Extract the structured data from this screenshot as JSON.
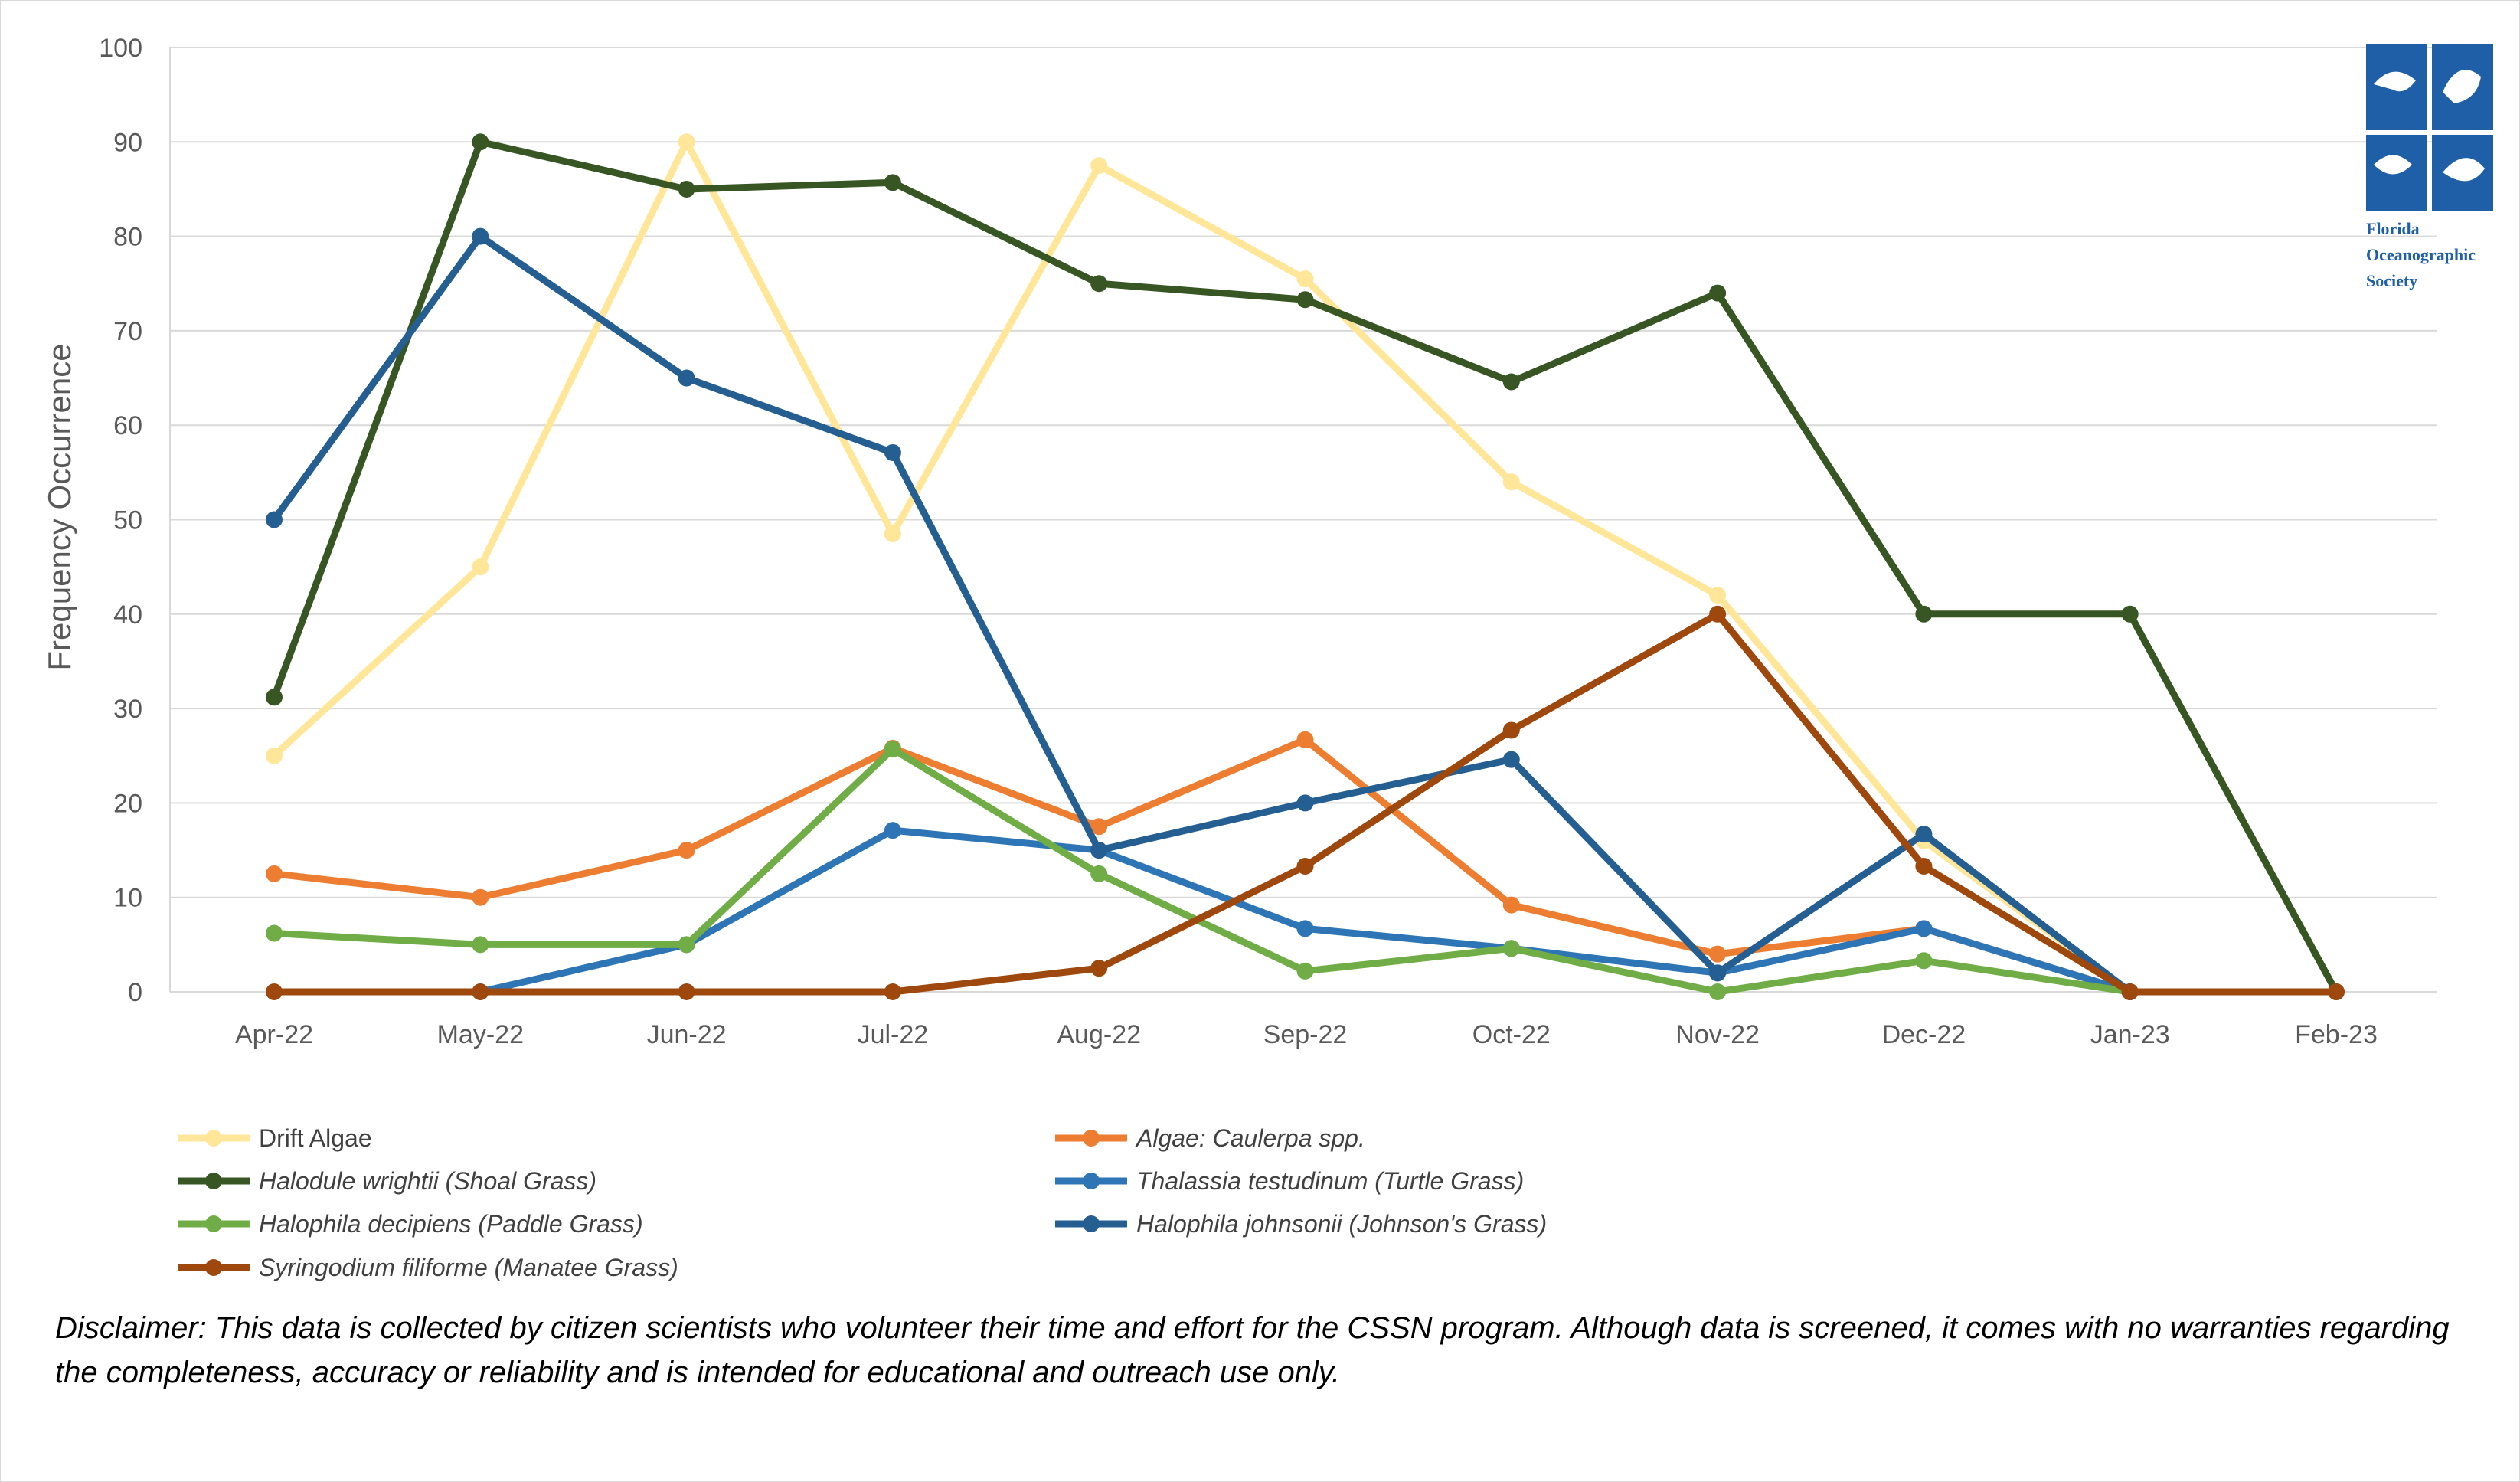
{
  "chart_data": {
    "type": "line",
    "title": "",
    "xlabel": "",
    "ylabel": "Frequency Occurrence",
    "ylim": [
      0,
      100
    ],
    "yticks": [
      0,
      10,
      20,
      30,
      40,
      50,
      60,
      70,
      80,
      90,
      100
    ],
    "categories": [
      "Apr-22",
      "May-22",
      "Jun-22",
      "Jul-22",
      "Aug-22",
      "Sep-22",
      "Oct-22",
      "Nov-22",
      "Dec-22",
      "Jan-23",
      "Feb-23"
    ],
    "grid": true,
    "legend_position": "bottom",
    "series": [
      {
        "name": "Drift Algae",
        "italic": false,
        "color": "#ffe699",
        "values": [
          25,
          45,
          90,
          48.5,
          87.5,
          75.5,
          54,
          42,
          16,
          0,
          null
        ]
      },
      {
        "name": "Algae: Caulerpa spp.",
        "italic": true,
        "color": "#ed7d31",
        "values": [
          12.5,
          10,
          15,
          25.8,
          17.5,
          26.7,
          9.2,
          4,
          6.7,
          0,
          null
        ]
      },
      {
        "name": "Halodule wrightii (Shoal Grass)",
        "italic": true,
        "color": "#375623",
        "values": [
          31.2,
          90,
          85,
          85.7,
          75,
          73.3,
          64.6,
          74,
          40,
          40,
          0
        ]
      },
      {
        "name": "Thalassia testudinum (Turtle Grass)",
        "italic": true,
        "color": "#2e75b6",
        "values": [
          null,
          0,
          5,
          17.1,
          15,
          6.7,
          4.6,
          2,
          6.7,
          0,
          null
        ]
      },
      {
        "name": "Halophila decipiens (Paddle Grass)",
        "italic": true,
        "color": "#70ad47",
        "values": [
          6.2,
          5,
          5,
          25.7,
          12.5,
          2.2,
          4.6,
          0,
          3.3,
          0,
          null
        ]
      },
      {
        "name": "Halophila johnsonii (Johnson's Grass)",
        "italic": true,
        "color": "#255e91",
        "values": [
          50,
          80,
          65,
          57.1,
          15,
          20,
          24.6,
          2,
          16.7,
          0,
          null
        ]
      },
      {
        "name": "Syringodium filiforme (Manatee Grass)",
        "italic": true,
        "color": "#9e480e",
        "values": [
          0,
          0,
          0,
          0,
          2.5,
          13.3,
          27.7,
          40,
          13.3,
          0,
          0
        ]
      }
    ]
  },
  "logo": {
    "lines": [
      "Florida",
      "Oceanographic",
      "Society"
    ],
    "color": "#1f5fa8"
  },
  "disclaimer": "Disclaimer: This data is collected by citizen scientists who volunteer their time and effort for the CSSN program. Although data is screened, it comes with no warranties regarding the completeness, accuracy or reliability and is intended for educational and outreach use only."
}
